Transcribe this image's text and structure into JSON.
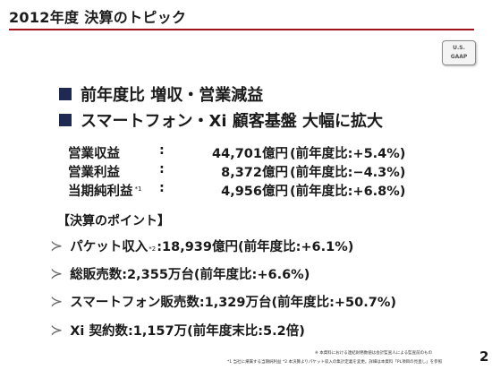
{
  "title": "2012年度 決算のトピック",
  "badge": {
    "line1": "U.S.",
    "line2": "GAAP"
  },
  "headlines": [
    "前年度比 増収・営業減益",
    "スマートフォン・Xi 顧客基盤 大幅に拡大"
  ],
  "results": [
    {
      "label": "営業収益",
      "sup": "",
      "colon": ":",
      "value": "44,701億円",
      "change": "(前年度比:+5.4%)"
    },
    {
      "label": "営業利益",
      "sup": "",
      "colon": ":",
      "value": "8,372億円",
      "change": "(前年度比:−4.3%)"
    },
    {
      "label": "当期純利益",
      "sup": "*1",
      "colon": ":",
      "value": "4,956億円",
      "change": "(前年度比:+6.8%)"
    }
  ],
  "points_header": "【決算のポイント】",
  "points": [
    {
      "before": "パケット収入",
      "sup": "*2",
      "after": ":18,939億円(前年度比:+6.1%)"
    },
    {
      "before": "総販売数:2,355万台(前年度比:+6.6%)",
      "sup": "",
      "after": ""
    },
    {
      "before": "スマートフォン販売数:1,329万台(前年度比:+50.7%)",
      "sup": "",
      "after": ""
    },
    {
      "before": "Xi 契約数:1,157万(前年度末比:5.2倍)",
      "sup": "",
      "after": ""
    }
  ],
  "footnotes": {
    "line1": "※ 本資料における連結財務数値は会計監査人による監査前のもの",
    "line2": "*1 当社に帰属する当期純利益 *2 本決算よりパケット収入の集計定義を変更。詳細は本資料「PL項目の見直し」を参照"
  },
  "page_number": "2",
  "colors": {
    "title_rule": "#a0131b",
    "bullet": "#1f2a52"
  }
}
